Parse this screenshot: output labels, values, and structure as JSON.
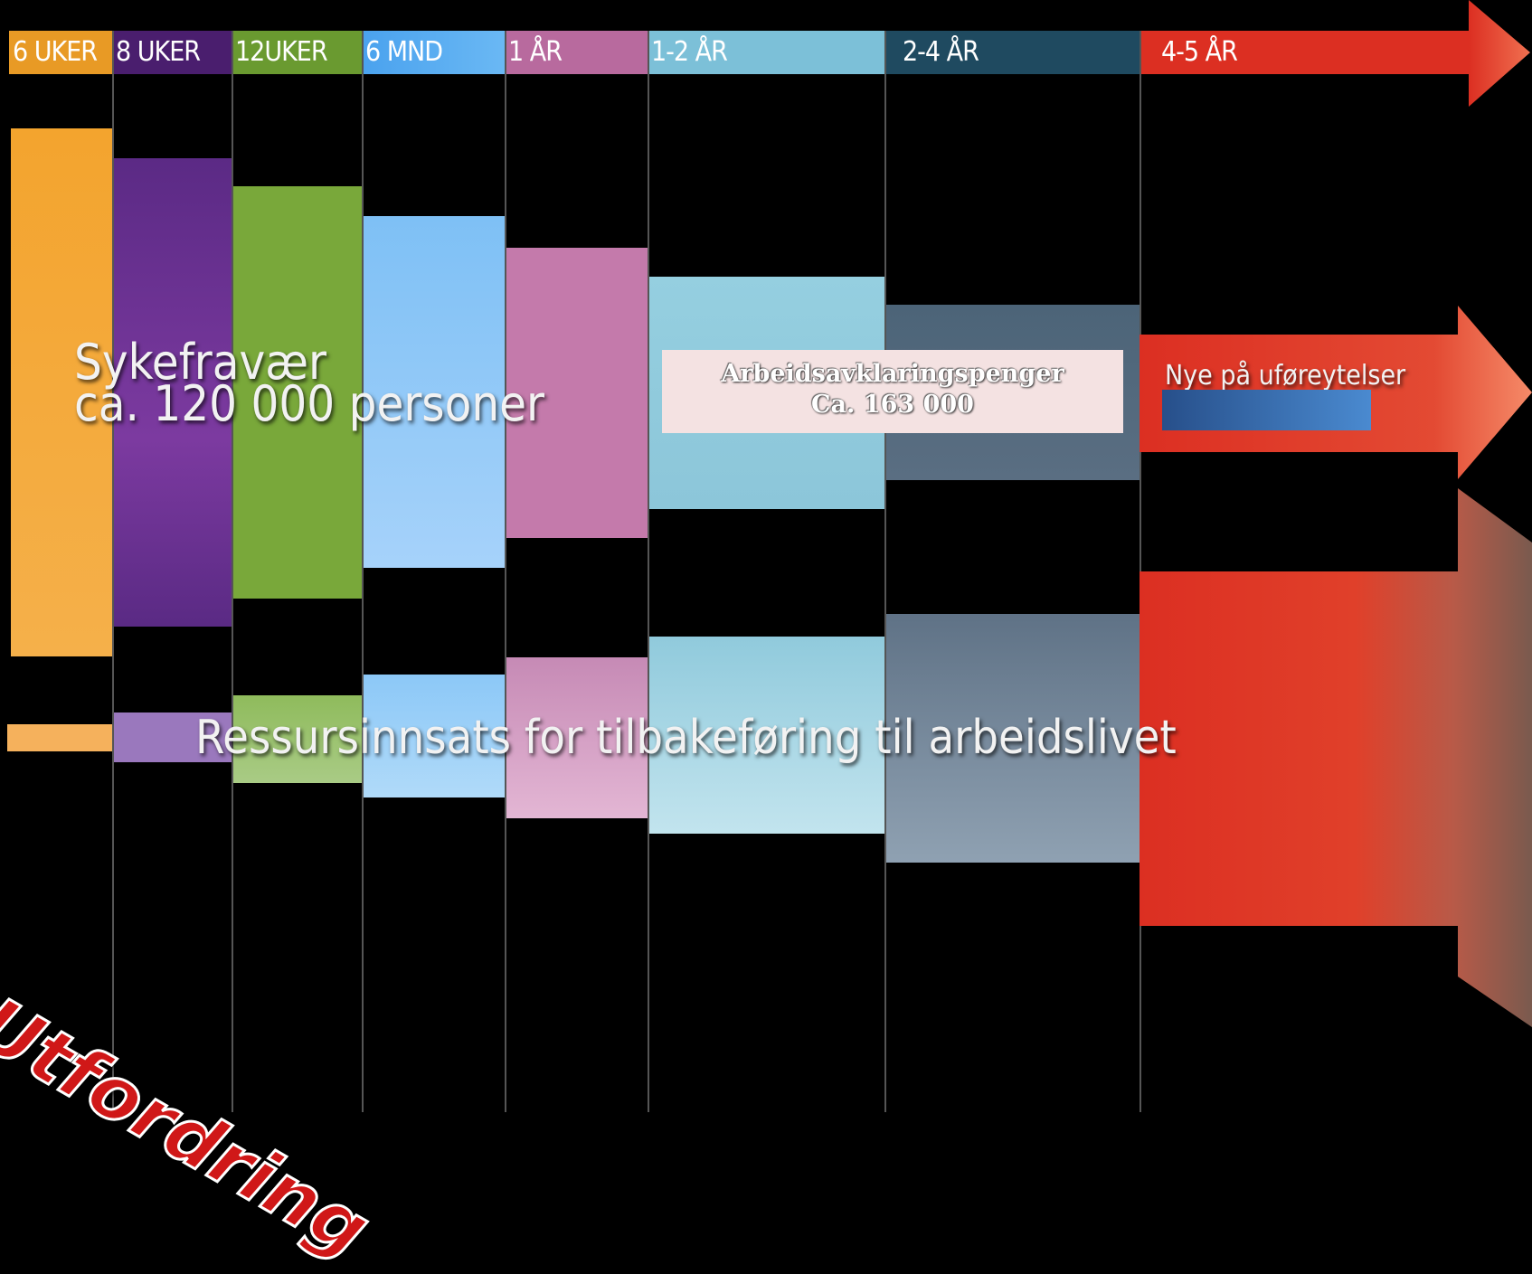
{
  "timeline_labels": [
    "6 UKER",
    "8 UKER",
    "12UKER",
    "6 MND",
    "1 ÅR",
    "1-2 ÅR",
    "2-4 ÅR",
    "4-5 ÅR"
  ],
  "sykefravaer_line1": "Sykefravær",
  "sykefravaer_line2": "ca. 120 000 personer",
  "aap_title": "Arbeidsavklaringspenger",
  "aap_count": "Ca. 163 000",
  "ufore_label": "Nye på uføreytelser",
  "ressurs_label": "Ressursinnsats for tilbakeføring til arbeidslivet",
  "challenge_label": "Utfordring",
  "colors": {
    "orange": "#f3a42e",
    "purple": "#6a3191",
    "green": "#79a83a",
    "light_blue": "#6ab8f4",
    "pink": "#c47aab",
    "cyan": "#8cc9dc",
    "slate": "#2a566c",
    "red": "#e03225"
  }
}
